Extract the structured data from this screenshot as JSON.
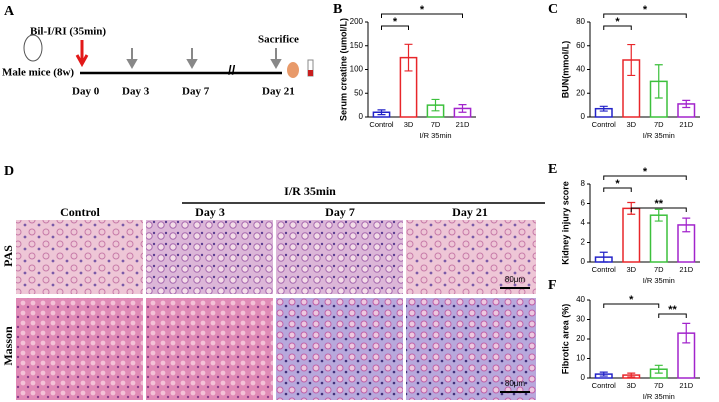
{
  "timeline": {
    "panel": "A",
    "subject": "Male mice (8w)",
    "event": "Bil-I/RI (35min)",
    "end_event": "Sacrifice",
    "days": [
      "Day 0",
      "Day 3",
      "Day 7",
      "Day 21"
    ]
  },
  "histology": {
    "panel": "D",
    "group": "I/R 35min",
    "columns": [
      "Control",
      "Day 3",
      "Day 7",
      "Day 21"
    ],
    "rows": [
      "PAS",
      "Masson"
    ],
    "scale_bar": "80μm"
  },
  "chart_data": [
    {
      "type": "bar",
      "panel": "B",
      "ylabel": "Serum creatine (umol/L)",
      "xlabel": "I/R 35min",
      "categories": [
        "Control",
        "3D",
        "7D",
        "21D"
      ],
      "values": [
        10,
        125,
        25,
        18
      ],
      "errors": [
        5,
        28,
        12,
        8
      ],
      "colors": [
        "#2323c8",
        "#e8262a",
        "#3cc03c",
        "#a224cc"
      ],
      "ylim": [
        0,
        200
      ],
      "yticks": [
        0,
        50,
        100,
        150,
        200
      ],
      "annotations": [
        {
          "text": "*",
          "between": [
            "Control",
            "3D"
          ]
        },
        {
          "text": "*",
          "between": [
            "Control",
            "21D"
          ]
        }
      ]
    },
    {
      "type": "bar",
      "panel": "C",
      "ylabel": "BUN(mmol/L)",
      "xlabel": "I/R 35min",
      "categories": [
        "Control",
        "3D",
        "7D",
        "21D"
      ],
      "values": [
        7,
        48,
        30,
        11
      ],
      "errors": [
        2,
        13,
        14,
        3
      ],
      "colors": [
        "#2323c8",
        "#e8262a",
        "#3cc03c",
        "#a224cc"
      ],
      "ylim": [
        0,
        80
      ],
      "yticks": [
        0,
        20,
        40,
        60,
        80
      ],
      "annotations": [
        {
          "text": "*",
          "between": [
            "Control",
            "3D"
          ]
        },
        {
          "text": "*",
          "between": [
            "Control",
            "21D"
          ]
        }
      ]
    },
    {
      "type": "bar",
      "panel": "E",
      "ylabel": "Kidney injury score",
      "xlabel": "I/R 35min",
      "categories": [
        "Control",
        "3D",
        "7D",
        "21D"
      ],
      "values": [
        0.5,
        5.5,
        4.8,
        3.8
      ],
      "errors": [
        0.5,
        0.6,
        0.6,
        0.7
      ],
      "colors": [
        "#2323c8",
        "#e8262a",
        "#3cc03c",
        "#a224cc"
      ],
      "ylim": [
        0,
        8
      ],
      "yticks": [
        0,
        2,
        4,
        6,
        8
      ],
      "annotations": [
        {
          "text": "*",
          "between": [
            "Control",
            "3D"
          ]
        },
        {
          "text": "*",
          "between": [
            "Control",
            "21D"
          ]
        },
        {
          "text": "**",
          "between": [
            "3D",
            "21D"
          ]
        }
      ]
    },
    {
      "type": "bar",
      "panel": "F",
      "ylabel": "Fibrotic area (%)",
      "xlabel": "I/R 35min",
      "categories": [
        "Control",
        "3D",
        "7D",
        "21D"
      ],
      "values": [
        2,
        1.5,
        4.5,
        23
      ],
      "errors": [
        1,
        1,
        2,
        5
      ],
      "colors": [
        "#2323c8",
        "#e8262a",
        "#3cc03c",
        "#a224cc"
      ],
      "ylim": [
        0,
        40
      ],
      "yticks": [
        0,
        10,
        20,
        30,
        40
      ],
      "annotations": [
        {
          "text": "*",
          "between": [
            "Control",
            "7D"
          ]
        },
        {
          "text": "**",
          "between": [
            "7D",
            "21D"
          ]
        }
      ]
    }
  ]
}
